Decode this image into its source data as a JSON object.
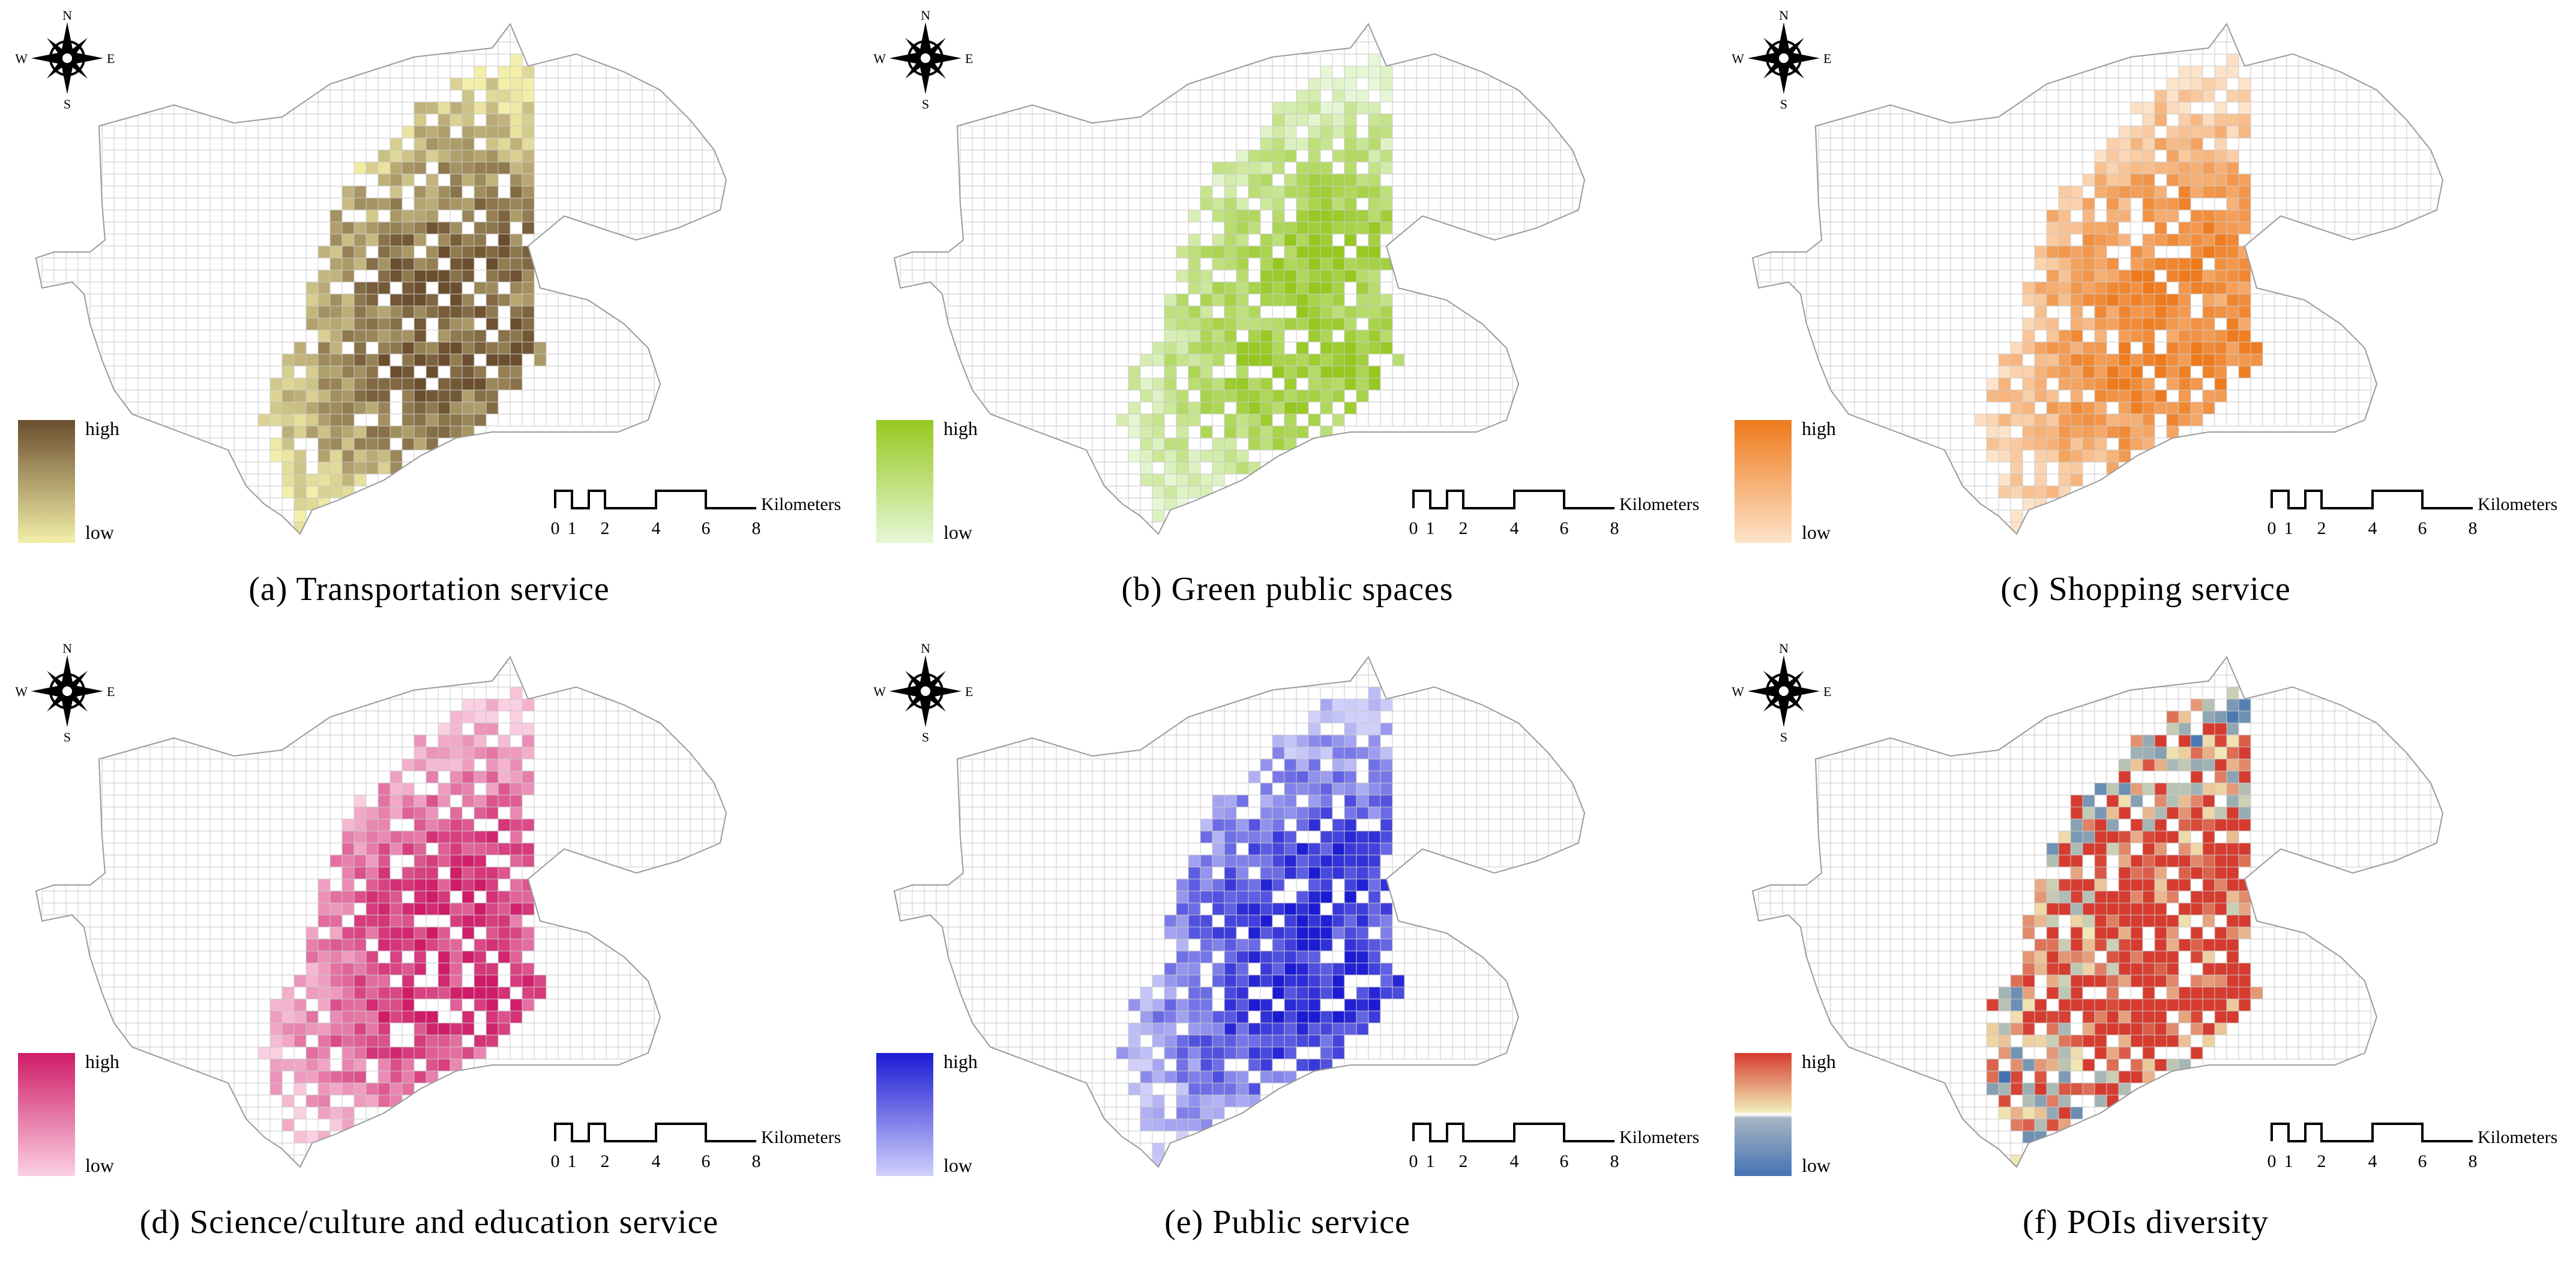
{
  "compass": {
    "n": "N",
    "s": "S",
    "w": "W",
    "e": "E"
  },
  "scale_bar": {
    "unit": "Kilometers",
    "ticks": [
      "0",
      "1",
      "2",
      "4",
      "6",
      "8"
    ]
  },
  "legend": {
    "high": "high",
    "low": "low"
  },
  "panels": [
    {
      "id": "a",
      "caption": "(a) Transportation service",
      "low_color": "#f3efa8",
      "high_color": "#6b4e2e",
      "diverging": false
    },
    {
      "id": "b",
      "caption": "(b) Green public spaces",
      "low_color": "#e6f7d6",
      "high_color": "#95c81e",
      "diverging": false
    },
    {
      "id": "c",
      "caption": "(c) Shopping service",
      "low_color": "#fde3c9",
      "high_color": "#ef7a1c",
      "diverging": false
    },
    {
      "id": "d",
      "caption": "(d) Science/culture and education service",
      "low_color": "#fbd0e2",
      "high_color": "#cf1b68",
      "diverging": false
    },
    {
      "id": "e",
      "caption": "(e) Public service",
      "low_color": "#d0d0fb",
      "high_color": "#1b1bd4",
      "diverging": false
    },
    {
      "id": "f",
      "caption": "(f) POIs diversity",
      "low_color": "#4373b3",
      "mid_color": "#f1e9b4",
      "high_color": "#d63b2f",
      "diverging": true
    }
  ]
}
